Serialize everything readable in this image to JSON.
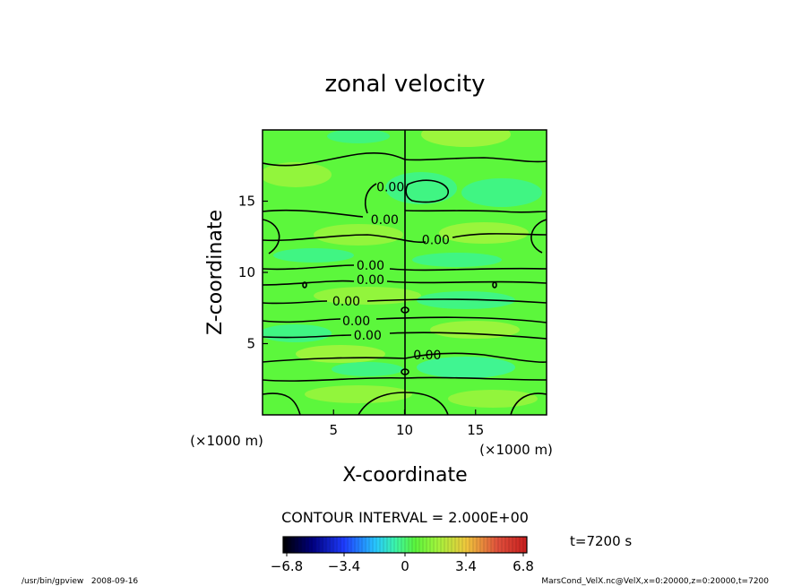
{
  "chart_data": {
    "type": "heatmap",
    "title": "zonal velocity",
    "xlabel": "X-coordinate",
    "ylabel": "Z-coordinate",
    "x_unit": "(×1000 m)",
    "y_unit": "(×1000 m)",
    "xlim": [
      0,
      20
    ],
    "ylim": [
      0,
      20
    ],
    "x_ticks": [
      5,
      10,
      15
    ],
    "x_tick_labels": [
      "5",
      "10",
      "15"
    ],
    "y_ticks": [
      5,
      10,
      15
    ],
    "y_tick_labels": [
      "5",
      "10",
      "15"
    ],
    "contour_interval_text": "CONTOUR INTERVAL = 2.000E+00",
    "contour_labels": [
      {
        "text": "0.00",
        "x": 9.0,
        "z": 16.0
      },
      {
        "text": "0.00",
        "x": 8.6,
        "z": 13.7
      },
      {
        "text": "0.00",
        "x": 12.2,
        "z": 12.3
      },
      {
        "text": "0.00",
        "x": 7.6,
        "z": 10.5
      },
      {
        "text": "0.00",
        "x": 7.6,
        "z": 9.5
      },
      {
        "text": "0.00",
        "x": 5.9,
        "z": 8.0
      },
      {
        "text": "0.00",
        "x": 6.6,
        "z": 6.6
      },
      {
        "text": "0.00",
        "x": 7.4,
        "z": 5.6
      },
      {
        "text": "0.00",
        "x": 11.6,
        "z": 4.2
      }
    ],
    "colorbar": {
      "range": [
        -6.8,
        6.8
      ],
      "tick_labels": [
        "−6.8",
        "−3.4",
        "0",
        "3.4",
        "6.8"
      ],
      "tick_values": [
        -6.8,
        -3.4,
        0,
        3.4,
        6.8
      ]
    },
    "time_label": "t=7200 s",
    "footer_left": "/usr/bin/gpview   2008-09-16",
    "footer_right": "MarsCond_VelX.nc@VelX,x=0:20000,z=0:20000,t=7200",
    "colors": {
      "field_base": "#5cf73c",
      "field_light": "#9cf53c",
      "field_cyan": "#3cf58a",
      "contour": "#000000"
    }
  }
}
